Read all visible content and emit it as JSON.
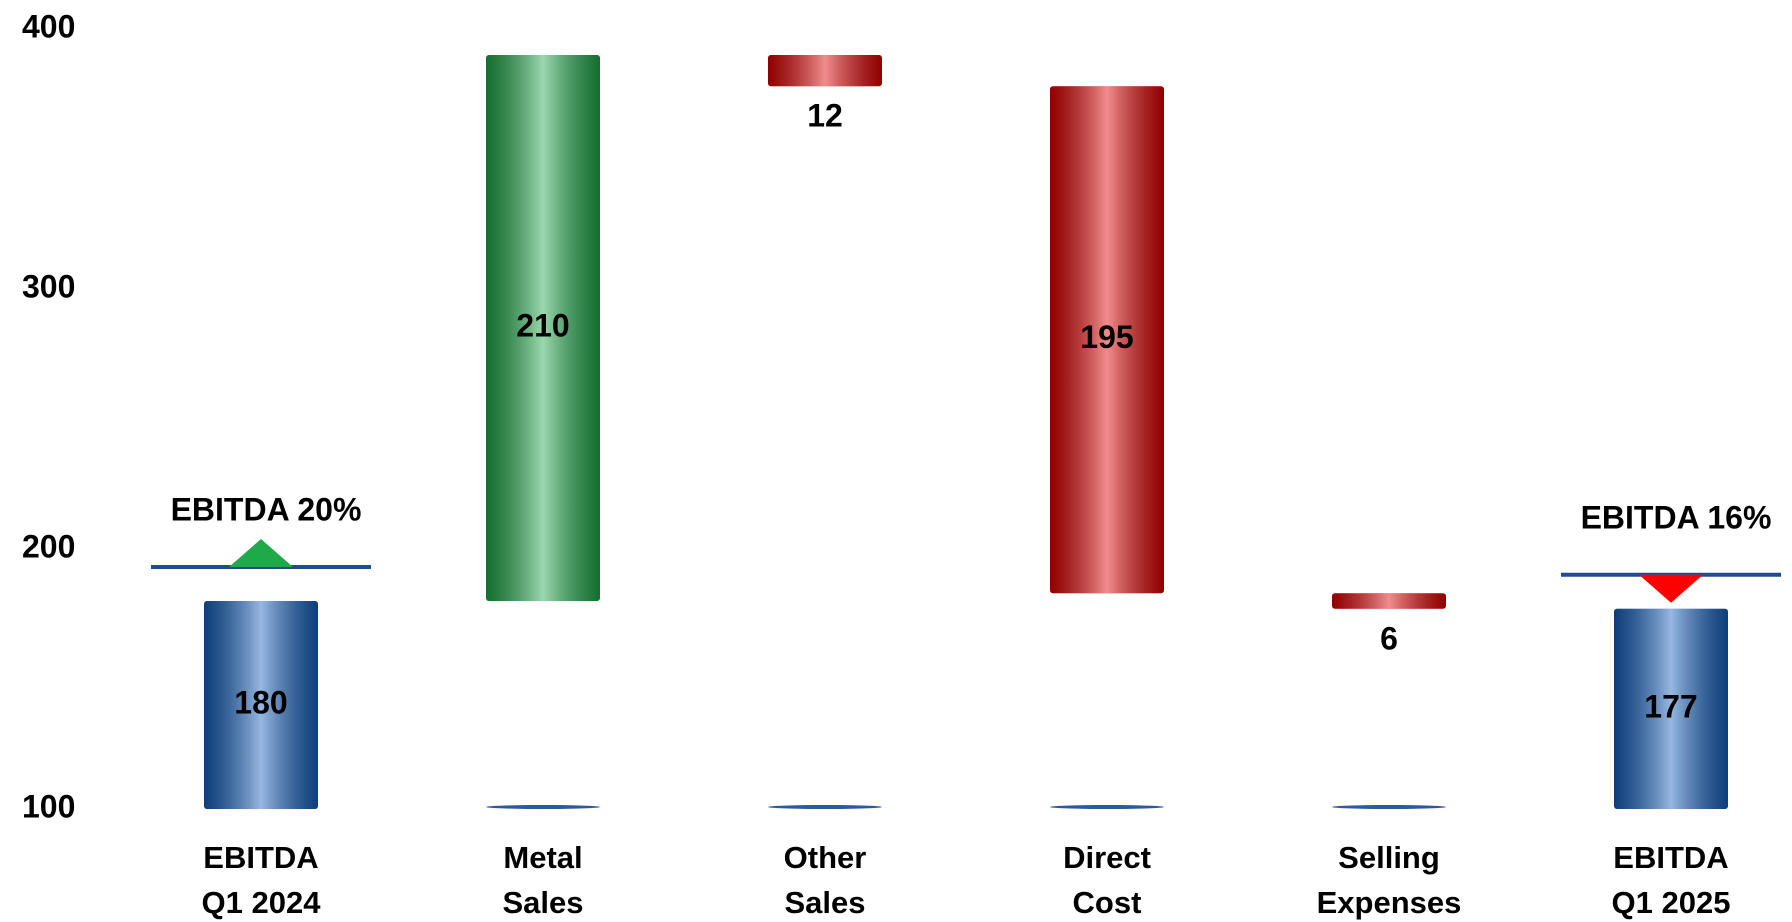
{
  "chart_data": {
    "type": "waterfall",
    "categories": [
      "EBITDA\nQ1 2024",
      "Metal\nSales",
      "Other\nSales",
      "Direct\nCost",
      "Selling\nExpenses",
      "EBITDA\nQ1 2025"
    ],
    "values": [
      180,
      210,
      12,
      195,
      6,
      177
    ],
    "measure": [
      "total",
      "increase",
      "decrease",
      "decrease",
      "decrease",
      "total"
    ],
    "colors": {
      "total": "#1560bd",
      "increase": "#1faa4a",
      "decrease": "#e00000"
    },
    "ylim": [
      100,
      400
    ],
    "yticks": [
      100,
      200,
      300,
      400
    ],
    "grid": false,
    "annotations": [
      {
        "text": "EBITDA 20%",
        "color": "#1faa4a",
        "marker": "up"
      },
      {
        "text": "EBITDA 16%",
        "color": "#ff0000",
        "marker": "down"
      }
    ]
  }
}
